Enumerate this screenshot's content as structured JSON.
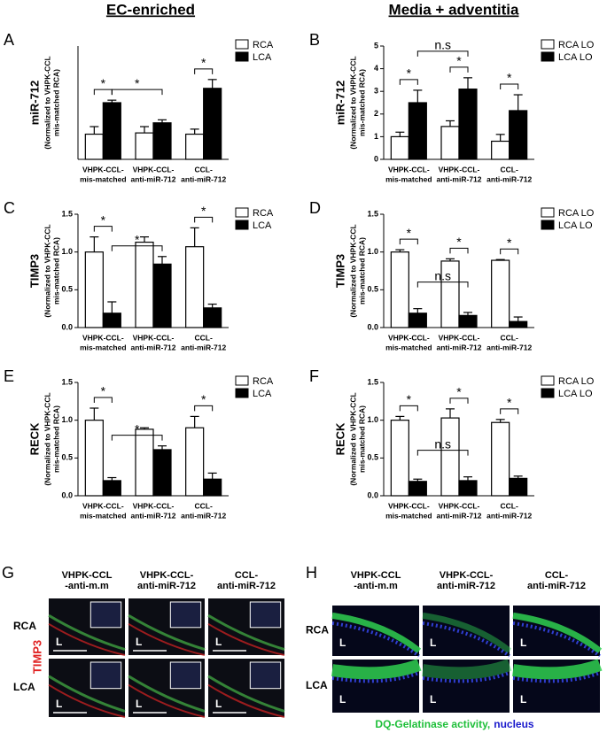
{
  "headers": [
    "EC-enriched",
    "Media + adventitia"
  ],
  "chart_data": [
    {
      "type": "bar",
      "label": "A",
      "ylabel": "miR-712",
      "ylabel_sub": [
        "(Normalized to VHPK-CCL",
        "mis-matched RCA)"
      ],
      "categories": [
        [
          "VHPK-CCL-",
          "mis-matched"
        ],
        [
          "VHPK-CCL-",
          "anti-miR-712"
        ],
        [
          "CCL-",
          "anti-miR-712"
        ]
      ],
      "series": [
        {
          "name": "RCA",
          "color": "#ffffff",
          "values": [
            1.0,
            1.05,
            1.0
          ],
          "errors": [
            0.3,
            0.25,
            0.2
          ]
        },
        {
          "name": "LCA",
          "color": "#000000",
          "values": [
            2.25,
            1.45,
            2.82
          ],
          "errors": [
            0.1,
            0.12,
            0.35
          ]
        }
      ],
      "ylim": [
        0,
        4.5
      ],
      "annotations": [
        "*",
        "*",
        "*"
      ]
    },
    {
      "type": "bar",
      "label": "B",
      "ylabel": "miR-712",
      "ylabel_sub": [
        "(Normalized to VHPK-CCL",
        "mis-matched RCA)"
      ],
      "categories": [
        [
          "VHPK-CCL-",
          "mis-matched"
        ],
        [
          "VHPK-CCL-",
          "anti-miR-712"
        ],
        [
          "CCL-",
          "anti-miR-712"
        ]
      ],
      "series": [
        {
          "name": "RCA LO",
          "color": "#ffffff",
          "values": [
            1.0,
            1.45,
            0.8
          ],
          "errors": [
            0.2,
            0.25,
            0.3
          ]
        },
        {
          "name": "LCA LO",
          "color": "#000000",
          "values": [
            2.5,
            3.1,
            2.15
          ],
          "errors": [
            0.55,
            0.5,
            0.7
          ]
        }
      ],
      "ylim": [
        0,
        5
      ],
      "yticks": [
        0,
        1,
        2,
        3,
        4,
        5
      ],
      "annotations": [
        "*",
        "*",
        "*",
        "n.s"
      ]
    },
    {
      "type": "bar",
      "label": "C",
      "ylabel": "TIMP3",
      "ylabel_sub": [
        "(Normalized to VHPK-CCL",
        "mis-matched RCA)"
      ],
      "categories": [
        [
          "VHPK-CCL-",
          "mis-matched"
        ],
        [
          "VHPK-CCL-",
          "anti-miR-712"
        ],
        [
          "CCL-",
          "anti-miR-712"
        ]
      ],
      "series": [
        {
          "name": "RCA",
          "color": "#ffffff",
          "values": [
            1.0,
            1.13,
            1.07
          ],
          "errors": [
            0.2,
            0.07,
            0.25
          ]
        },
        {
          "name": "LCA",
          "color": "#000000",
          "values": [
            0.19,
            0.84,
            0.26
          ],
          "errors": [
            0.15,
            0.1,
            0.05
          ]
        }
      ],
      "ylim": [
        0,
        1.5
      ],
      "yticks": [
        {
          "value": 0,
          "label": "0.0"
        },
        0.5,
        {
          "value": 1,
          "label": "1.0"
        },
        1.5
      ],
      "annotations": [
        "*",
        "*",
        "*"
      ]
    },
    {
      "type": "bar",
      "label": "D",
      "ylabel": "TIMP3",
      "ylabel_sub": [
        "(Normalized to VHPK-CCL",
        "mis-matched RCA)"
      ],
      "categories": [
        [
          "VHPK-CCL-",
          "mis-matched"
        ],
        [
          "VHPK-CCL-",
          "anti-miR-712"
        ],
        [
          "CCL-",
          "anti-miR-712"
        ]
      ],
      "series": [
        {
          "name": "RCA LO",
          "color": "#ffffff",
          "values": [
            1.0,
            0.88,
            0.89
          ],
          "errors": [
            0.03,
            0.03,
            0.01
          ]
        },
        {
          "name": "LCA LO",
          "color": "#000000",
          "values": [
            0.19,
            0.16,
            0.08
          ],
          "errors": [
            0.06,
            0.04,
            0.06
          ]
        }
      ],
      "ylim": [
        0,
        1.5
      ],
      "yticks": [
        {
          "value": 0,
          "label": "0.0"
        },
        0.5,
        {
          "value": 1,
          "label": "1.0"
        },
        1.5
      ],
      "annotations": [
        "*",
        "*",
        "*",
        "n.s"
      ]
    },
    {
      "type": "bar",
      "label": "E",
      "ylabel": "RECK",
      "ylabel_sub": [
        "(Normalized to VHPK-CCL",
        "mis-matched RCA)"
      ],
      "categories": [
        [
          "VHPK-CCL-",
          "mis-matched"
        ],
        [
          "VHPK-CCL-",
          "anti-miR-712"
        ],
        [
          "CCL-",
          "anti-miR-712"
        ]
      ],
      "series": [
        {
          "name": "RCA",
          "color": "#ffffff",
          "values": [
            1.0,
            0.88,
            0.9
          ],
          "errors": [
            0.16,
            0.02,
            0.15
          ]
        },
        {
          "name": "LCA",
          "color": "#000000",
          "values": [
            0.2,
            0.61,
            0.22
          ],
          "errors": [
            0.04,
            0.05,
            0.08
          ]
        }
      ],
      "ylim": [
        0,
        1.5
      ],
      "yticks": [
        {
          "value": 0,
          "label": "0.0"
        },
        0.5,
        {
          "value": 1,
          "label": "1.0"
        },
        1.5
      ],
      "annotations": [
        "*",
        "*",
        "*"
      ]
    },
    {
      "type": "bar",
      "label": "F",
      "ylabel": "RECK",
      "ylabel_sub": [
        "(Normalized to VHPK-CCL",
        "mis-matched RCA)"
      ],
      "categories": [
        [
          "VHPK-CCL-",
          "mis-matched"
        ],
        [
          "VHPK-CCL-",
          "anti-miR-712"
        ],
        [
          "CCL-",
          "anti-miR-712"
        ]
      ],
      "series": [
        {
          "name": "RCA LO",
          "color": "#ffffff",
          "values": [
            1.0,
            1.03,
            0.97
          ],
          "errors": [
            0.05,
            0.12,
            0.04
          ]
        },
        {
          "name": "LCA LO",
          "color": "#000000",
          "values": [
            0.19,
            0.2,
            0.23
          ],
          "errors": [
            0.03,
            0.05,
            0.03
          ]
        }
      ],
      "ylim": [
        0,
        1.5
      ],
      "yticks": [
        {
          "value": 0,
          "label": "0.0"
        },
        0.5,
        {
          "value": 1,
          "label": "1.0"
        },
        1.5
      ],
      "annotations": [
        "*",
        "*",
        "*",
        "n.s"
      ]
    }
  ],
  "panel_g": {
    "label": "G",
    "columns": [
      [
        "VHPK-CCL",
        "-anti-m.m"
      ],
      [
        "VHPK-CCL-",
        "anti-miR-712"
      ],
      [
        "CCL-",
        "anti-miR-712"
      ]
    ],
    "rows": [
      "RCA",
      "LCA"
    ],
    "stain": "TIMP3",
    "lumen": "L"
  },
  "panel_h": {
    "label": "H",
    "columns": [
      [
        "VHPK-CCL",
        "-anti-m.m"
      ],
      [
        "VHPK-CCL-",
        "anti-miR-712"
      ],
      [
        "CCL-",
        "anti-miR-712"
      ]
    ],
    "rows": [
      "RCA",
      "LCA"
    ],
    "lumen": "L",
    "caption": [
      "DQ-Gelatinase activity,",
      "nucleus"
    ]
  }
}
